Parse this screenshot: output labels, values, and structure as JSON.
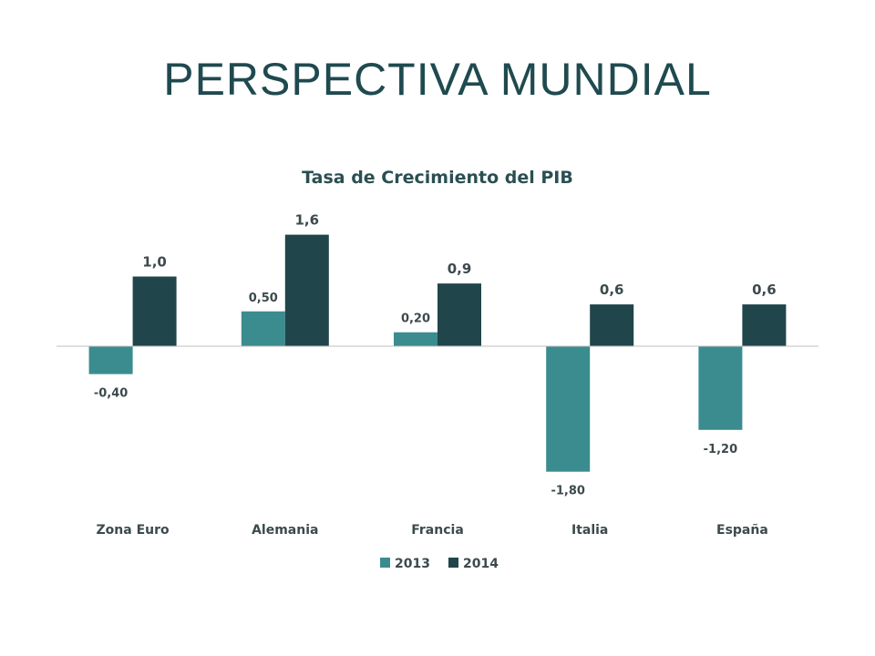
{
  "slide": {
    "title": "PERSPECTIVA MUNDIAL"
  },
  "colors": {
    "series_2013": "#3a8c8f",
    "series_2014": "#20454a",
    "axis": "#bfbfbf",
    "title": "#1f4a4f"
  },
  "chart_data": {
    "type": "bar",
    "title": "Tasa de Crecimiento del PIB",
    "categories": [
      "Zona Euro",
      "Alemania",
      "Francia",
      "Italia",
      "España"
    ],
    "series": [
      {
        "name": "2013",
        "values": [
          -0.4,
          0.5,
          0.2,
          -1.8,
          -1.2
        ],
        "labels": [
          "-0,40",
          "0,50",
          "0,20",
          "-1,80",
          "-1,20"
        ]
      },
      {
        "name": "2014",
        "values": [
          1.0,
          1.6,
          0.9,
          0.6,
          0.6
        ],
        "labels": [
          "1,0",
          "1,6",
          "0,9",
          "0,6",
          "0,6"
        ]
      }
    ],
    "ylim": [
      -2.0,
      1.8
    ],
    "grid": false,
    "legend": "bottom"
  }
}
